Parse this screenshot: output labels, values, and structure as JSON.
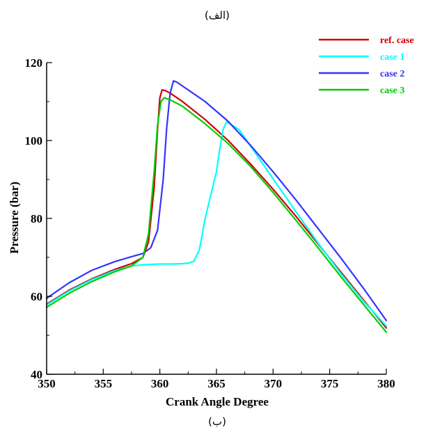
{
  "captions": {
    "top": "(الف)",
    "bottom": "(ب)"
  },
  "chart_data": {
    "type": "line",
    "xlabel": "Crank Angle Degree",
    "ylabel": "Pressure (bar)",
    "xlim": [
      350,
      380
    ],
    "ylim": [
      40,
      120
    ],
    "xticks": [
      350,
      355,
      360,
      365,
      370,
      375,
      380
    ],
    "yticks": [
      40,
      60,
      80,
      100,
      120
    ],
    "grid": false,
    "legend_position": "top-right",
    "series": [
      {
        "name": "ref. case",
        "color": "#cc0000",
        "x": [
          350,
          352,
          354,
          356,
          357.5,
          358.5,
          359.0,
          359.5,
          359.8,
          360.0,
          360.2,
          360.5,
          361,
          362,
          364,
          366,
          368,
          370,
          372,
          374,
          376,
          378,
          380
        ],
        "y": [
          58.0,
          61.6,
          64.5,
          66.9,
          68.4,
          70.0,
          74.0,
          88.0,
          103.0,
          111.0,
          113.0,
          112.8,
          112.0,
          110.0,
          105.4,
          100.1,
          94.0,
          87.5,
          80.6,
          73.4,
          66.2,
          59.0,
          51.9
        ]
      },
      {
        "name": "case 1",
        "color": "#00ffff",
        "x": [
          350,
          352,
          354,
          356,
          357.5,
          358.5,
          359,
          360,
          361,
          362,
          362.5,
          363,
          363.5,
          364,
          364.5,
          365,
          365.3,
          365.6,
          365.9,
          367,
          368,
          370,
          372,
          374,
          376,
          378,
          380
        ],
        "y": [
          57.8,
          61.4,
          64.3,
          66.6,
          67.8,
          68.1,
          68.2,
          68.3,
          68.3,
          68.4,
          68.5,
          69.0,
          72.0,
          80.0,
          86.0,
          92.0,
          98.0,
          103.0,
          104.8,
          102.8,
          98.6,
          90.2,
          81.8,
          73.6,
          65.8,
          58.7,
          52.4
        ]
      },
      {
        "name": "case 2",
        "color": "#3333ff",
        "x": [
          350,
          352,
          354,
          356,
          357.5,
          358.5,
          359.2,
          359.8,
          360.3,
          360.6,
          360.9,
          361.2,
          361.5,
          362,
          364,
          366,
          368,
          370,
          372,
          374,
          376,
          378,
          380
        ],
        "y": [
          59.5,
          63.5,
          66.7,
          68.9,
          70.2,
          71.0,
          72.5,
          77.0,
          90.0,
          103.0,
          112.0,
          115.3,
          115.0,
          114.0,
          110.0,
          105.0,
          98.8,
          92.0,
          84.8,
          77.3,
          69.8,
          62.0,
          53.8
        ]
      },
      {
        "name": "case 3",
        "color": "#00cc00",
        "x": [
          350,
          352,
          354,
          356,
          357.5,
          358.5,
          359.0,
          359.5,
          359.8,
          360.1,
          360.4,
          361,
          362,
          364,
          366,
          368,
          370,
          372,
          374,
          376,
          378,
          380
        ],
        "y": [
          57.2,
          60.8,
          63.8,
          66.3,
          67.8,
          70.0,
          76.0,
          92.0,
          104.0,
          110.0,
          111.0,
          110.3,
          108.8,
          104.3,
          99.3,
          93.4,
          86.7,
          79.6,
          72.4,
          65.0,
          57.9,
          50.8
        ]
      }
    ]
  }
}
